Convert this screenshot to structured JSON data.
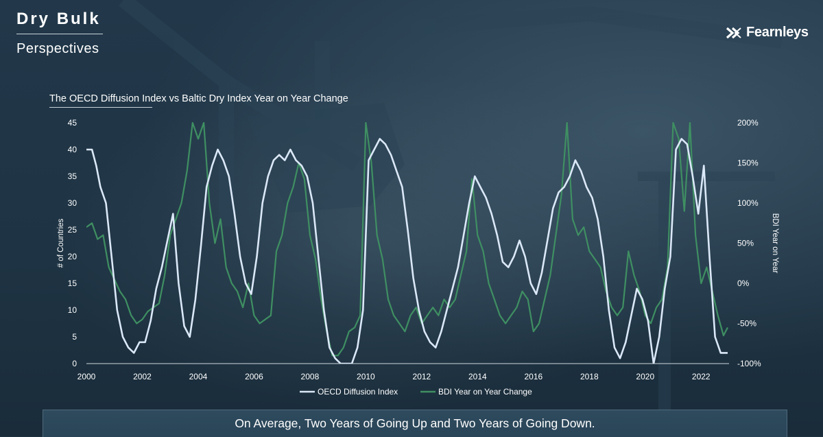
{
  "header": {
    "title": "Dry Bulk",
    "subtitle": "Perspectives",
    "logo_text": "Fearnleys"
  },
  "banner": {
    "text": "On Average, Two Years of Going Up and Two Years of Going Down."
  },
  "colors": {
    "oecd_line": "#dbe8f8",
    "bdi_line": "#3f8f62",
    "background": "#1f3442"
  },
  "chart_data": {
    "type": "line",
    "title": "The OECD Diffusion Index vs Baltic Dry Index Year on Year Change",
    "ylabel": "# of Countries",
    "y2label": "BDI Year on Year",
    "xlim": [
      2000,
      2023
    ],
    "ylim": [
      0,
      45
    ],
    "y2lim": [
      -100,
      200
    ],
    "x_ticks": [
      "2000",
      "2002",
      "2004",
      "2006",
      "2008",
      "2010",
      "2012",
      "2014",
      "2016",
      "2018",
      "2020",
      "2022"
    ],
    "y_ticks": [
      "0",
      "5",
      "10",
      "15",
      "20",
      "25",
      "30",
      "35",
      "40",
      "45"
    ],
    "y2_ticks": [
      "-100%",
      "-50%",
      "0%",
      "50%",
      "100%",
      "150%",
      "200%"
    ],
    "grid": false,
    "legend": "bottom-center",
    "series": [
      {
        "name": "OECD Diffusion Index",
        "axis": "left",
        "points": [
          [
            2000.0,
            40
          ],
          [
            2000.2,
            40
          ],
          [
            2000.35,
            37
          ],
          [
            2000.5,
            33
          ],
          [
            2000.7,
            30
          ],
          [
            2000.9,
            20
          ],
          [
            2001.1,
            10
          ],
          [
            2001.3,
            5
          ],
          [
            2001.5,
            3
          ],
          [
            2001.7,
            2
          ],
          [
            2001.9,
            4
          ],
          [
            2002.1,
            4
          ],
          [
            2002.3,
            8
          ],
          [
            2002.5,
            14
          ],
          [
            2002.7,
            18
          ],
          [
            2002.9,
            23
          ],
          [
            2003.1,
            28
          ],
          [
            2003.3,
            15
          ],
          [
            2003.5,
            7
          ],
          [
            2003.7,
            5
          ],
          [
            2003.9,
            12
          ],
          [
            2004.1,
            22
          ],
          [
            2004.3,
            33
          ],
          [
            2004.5,
            37
          ],
          [
            2004.7,
            40
          ],
          [
            2004.9,
            38
          ],
          [
            2005.1,
            35
          ],
          [
            2005.3,
            28
          ],
          [
            2005.5,
            20
          ],
          [
            2005.7,
            15
          ],
          [
            2005.9,
            13
          ],
          [
            2006.1,
            20
          ],
          [
            2006.3,
            30
          ],
          [
            2006.5,
            35
          ],
          [
            2006.7,
            38
          ],
          [
            2006.9,
            39
          ],
          [
            2007.1,
            38
          ],
          [
            2007.3,
            40
          ],
          [
            2007.5,
            38
          ],
          [
            2007.7,
            37
          ],
          [
            2007.9,
            35
          ],
          [
            2008.1,
            30
          ],
          [
            2008.3,
            20
          ],
          [
            2008.5,
            10
          ],
          [
            2008.7,
            3
          ],
          [
            2008.9,
            1
          ],
          [
            2009.1,
            0
          ],
          [
            2009.3,
            0
          ],
          [
            2009.5,
            0
          ],
          [
            2009.7,
            3
          ],
          [
            2009.9,
            10
          ],
          [
            2010.1,
            38
          ],
          [
            2010.3,
            40
          ],
          [
            2010.5,
            42
          ],
          [
            2010.7,
            41
          ],
          [
            2010.9,
            39
          ],
          [
            2011.1,
            36
          ],
          [
            2011.3,
            33
          ],
          [
            2011.5,
            25
          ],
          [
            2011.7,
            16
          ],
          [
            2011.9,
            10
          ],
          [
            2012.1,
            6
          ],
          [
            2012.3,
            4
          ],
          [
            2012.5,
            3
          ],
          [
            2012.7,
            6
          ],
          [
            2012.9,
            10
          ],
          [
            2013.1,
            14
          ],
          [
            2013.3,
            18
          ],
          [
            2013.5,
            24
          ],
          [
            2013.7,
            30
          ],
          [
            2013.9,
            35
          ],
          [
            2014.1,
            33
          ],
          [
            2014.3,
            31
          ],
          [
            2014.5,
            28
          ],
          [
            2014.7,
            24
          ],
          [
            2014.9,
            19
          ],
          [
            2015.1,
            18
          ],
          [
            2015.3,
            20
          ],
          [
            2015.5,
            23
          ],
          [
            2015.7,
            20
          ],
          [
            2015.9,
            15
          ],
          [
            2016.1,
            13
          ],
          [
            2016.3,
            17
          ],
          [
            2016.5,
            23
          ],
          [
            2016.7,
            29
          ],
          [
            2016.9,
            32
          ],
          [
            2017.1,
            33
          ],
          [
            2017.3,
            35
          ],
          [
            2017.5,
            38
          ],
          [
            2017.7,
            36
          ],
          [
            2017.9,
            33
          ],
          [
            2018.1,
            31
          ],
          [
            2018.3,
            27
          ],
          [
            2018.5,
            20
          ],
          [
            2018.7,
            10
          ],
          [
            2018.9,
            3
          ],
          [
            2019.1,
            1
          ],
          [
            2019.3,
            4
          ],
          [
            2019.5,
            9
          ],
          [
            2019.7,
            14
          ],
          [
            2019.9,
            12
          ],
          [
            2020.1,
            8
          ],
          [
            2020.3,
            0
          ],
          [
            2020.5,
            5
          ],
          [
            2020.7,
            14
          ],
          [
            2020.9,
            20
          ],
          [
            2021.1,
            40
          ],
          [
            2021.3,
            42
          ],
          [
            2021.5,
            41
          ],
          [
            2021.7,
            35
          ],
          [
            2021.9,
            28
          ],
          [
            2022.1,
            37
          ],
          [
            2022.3,
            20
          ],
          [
            2022.5,
            5
          ],
          [
            2022.7,
            2
          ],
          [
            2022.95,
            2
          ]
        ]
      },
      {
        "name": "BDI Year on Year Change",
        "axis": "right",
        "points": [
          [
            2000.0,
            70
          ],
          [
            2000.2,
            75
          ],
          [
            2000.4,
            55
          ],
          [
            2000.6,
            60
          ],
          [
            2000.8,
            20
          ],
          [
            2001.0,
            5
          ],
          [
            2001.2,
            -10
          ],
          [
            2001.4,
            -20
          ],
          [
            2001.6,
            -40
          ],
          [
            2001.8,
            -50
          ],
          [
            2002.0,
            -45
          ],
          [
            2002.2,
            -35
          ],
          [
            2002.4,
            -30
          ],
          [
            2002.6,
            -25
          ],
          [
            2002.8,
            10
          ],
          [
            2003.0,
            60
          ],
          [
            2003.2,
            80
          ],
          [
            2003.4,
            100
          ],
          [
            2003.6,
            140
          ],
          [
            2003.8,
            200
          ],
          [
            2004.0,
            180
          ],
          [
            2004.2,
            200
          ],
          [
            2004.4,
            100
          ],
          [
            2004.6,
            50
          ],
          [
            2004.8,
            80
          ],
          [
            2005.0,
            20
          ],
          [
            2005.2,
            0
          ],
          [
            2005.4,
            -10
          ],
          [
            2005.6,
            -30
          ],
          [
            2005.8,
            0
          ],
          [
            2006.0,
            -40
          ],
          [
            2006.2,
            -50
          ],
          [
            2006.4,
            -45
          ],
          [
            2006.6,
            -40
          ],
          [
            2006.8,
            40
          ],
          [
            2007.0,
            60
          ],
          [
            2007.2,
            100
          ],
          [
            2007.4,
            120
          ],
          [
            2007.6,
            150
          ],
          [
            2007.8,
            130
          ],
          [
            2008.0,
            60
          ],
          [
            2008.2,
            30
          ],
          [
            2008.4,
            -20
          ],
          [
            2008.6,
            -60
          ],
          [
            2008.8,
            -90
          ],
          [
            2009.0,
            -90
          ],
          [
            2009.2,
            -80
          ],
          [
            2009.4,
            -60
          ],
          [
            2009.6,
            -55
          ],
          [
            2009.8,
            -40
          ],
          [
            2010.0,
            200
          ],
          [
            2010.2,
            150
          ],
          [
            2010.4,
            60
          ],
          [
            2010.6,
            30
          ],
          [
            2010.8,
            -20
          ],
          [
            2011.0,
            -40
          ],
          [
            2011.2,
            -50
          ],
          [
            2011.4,
            -60
          ],
          [
            2011.6,
            -40
          ],
          [
            2011.8,
            -30
          ],
          [
            2012.0,
            -50
          ],
          [
            2012.2,
            -40
          ],
          [
            2012.4,
            -30
          ],
          [
            2012.6,
            -40
          ],
          [
            2012.8,
            -20
          ],
          [
            2013.0,
            -30
          ],
          [
            2013.2,
            -20
          ],
          [
            2013.4,
            10
          ],
          [
            2013.6,
            40
          ],
          [
            2013.8,
            130
          ],
          [
            2014.0,
            60
          ],
          [
            2014.2,
            40
          ],
          [
            2014.4,
            0
          ],
          [
            2014.6,
            -20
          ],
          [
            2014.8,
            -40
          ],
          [
            2015.0,
            -50
          ],
          [
            2015.2,
            -40
          ],
          [
            2015.4,
            -30
          ],
          [
            2015.6,
            -10
          ],
          [
            2015.8,
            -20
          ],
          [
            2016.0,
            -60
          ],
          [
            2016.2,
            -50
          ],
          [
            2016.4,
            -20
          ],
          [
            2016.6,
            10
          ],
          [
            2016.8,
            60
          ],
          [
            2017.0,
            110
          ],
          [
            2017.2,
            200
          ],
          [
            2017.4,
            80
          ],
          [
            2017.6,
            60
          ],
          [
            2017.8,
            70
          ],
          [
            2018.0,
            40
          ],
          [
            2018.2,
            30
          ],
          [
            2018.4,
            20
          ],
          [
            2018.6,
            -10
          ],
          [
            2018.8,
            -30
          ],
          [
            2019.0,
            -40
          ],
          [
            2019.2,
            -30
          ],
          [
            2019.4,
            40
          ],
          [
            2019.6,
            10
          ],
          [
            2019.8,
            -10
          ],
          [
            2020.0,
            -40
          ],
          [
            2020.2,
            -50
          ],
          [
            2020.4,
            -30
          ],
          [
            2020.6,
            -20
          ],
          [
            2020.8,
            20
          ],
          [
            2021.0,
            200
          ],
          [
            2021.2,
            180
          ],
          [
            2021.4,
            90
          ],
          [
            2021.6,
            200
          ],
          [
            2021.8,
            60
          ],
          [
            2022.0,
            0
          ],
          [
            2022.2,
            20
          ],
          [
            2022.4,
            -10
          ],
          [
            2022.6,
            -40
          ],
          [
            2022.8,
            -65
          ],
          [
            2022.95,
            -55
          ]
        ]
      }
    ]
  }
}
